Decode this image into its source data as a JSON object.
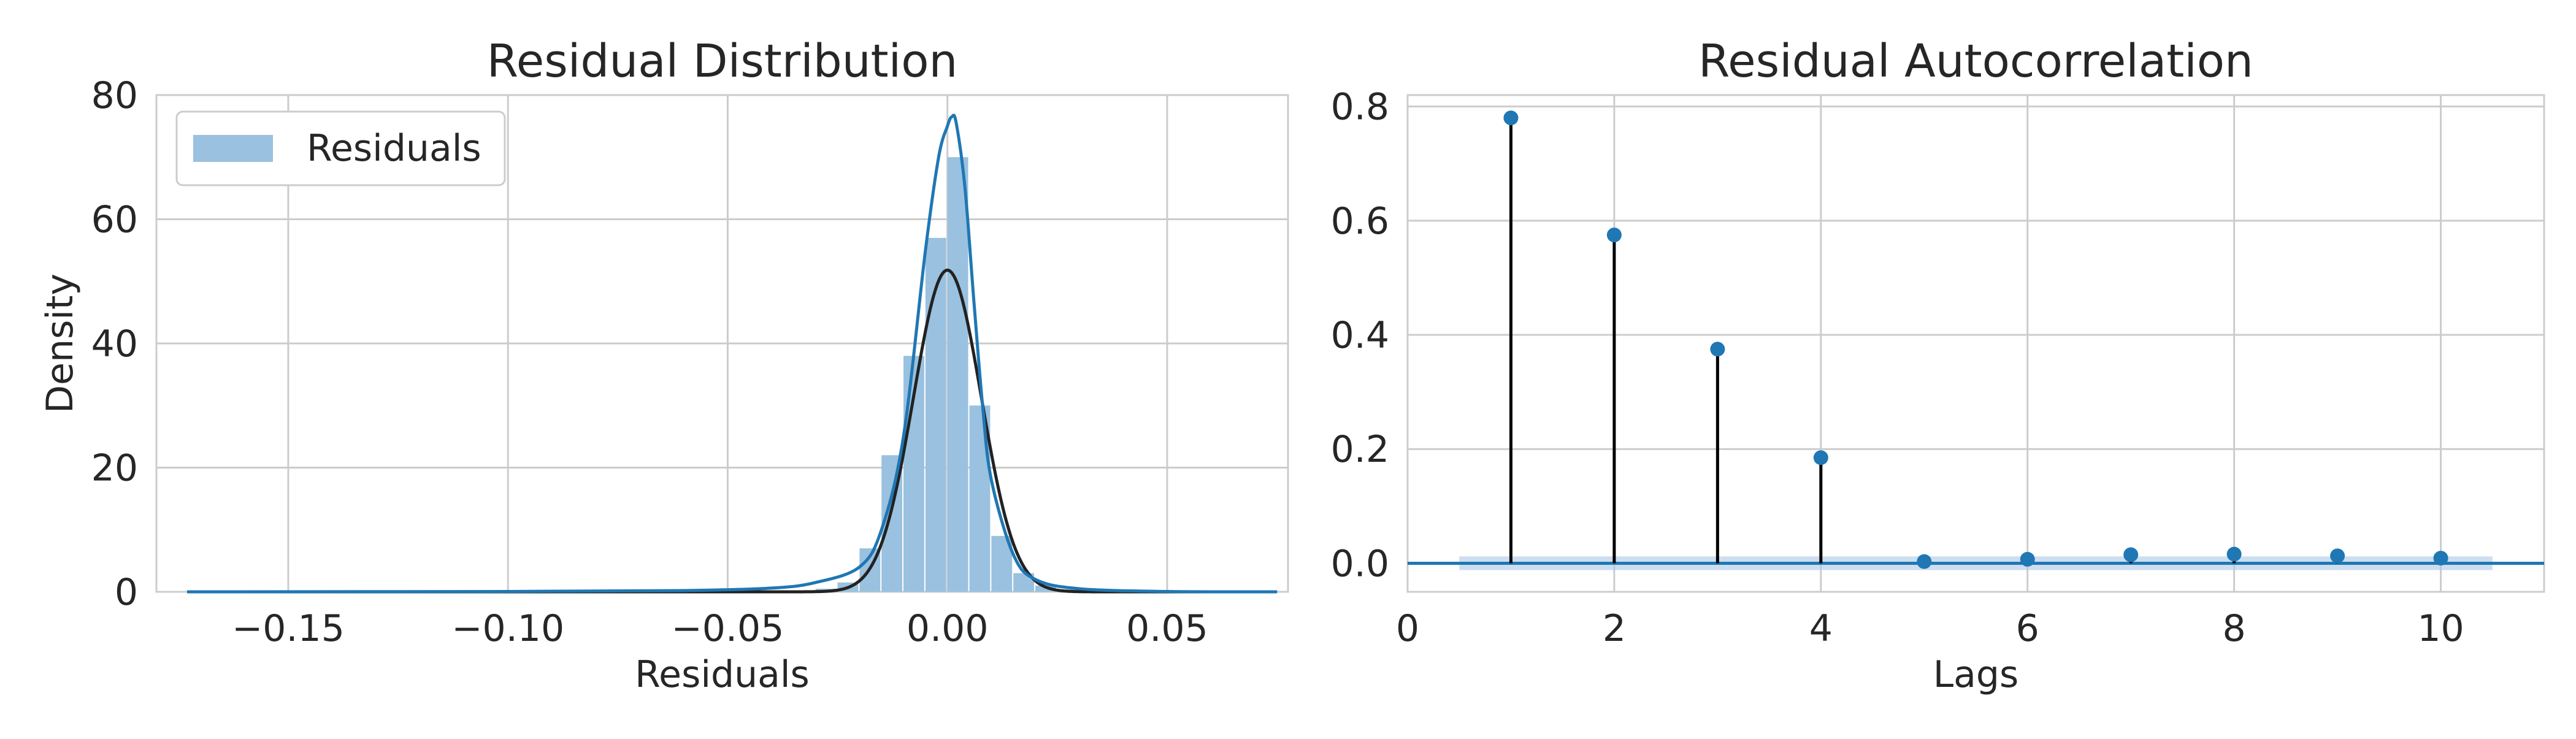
{
  "chart_data": [
    {
      "type": "histogram",
      "title": "Residual Distribution",
      "xlabel": "Residuals",
      "ylabel": "Density",
      "xlim": [
        -0.18,
        0.0775
      ],
      "ylim": [
        0,
        80
      ],
      "xticks": [
        -0.15,
        -0.1,
        -0.05,
        0.0,
        0.05
      ],
      "xtick_labels": [
        "−0.15",
        "−0.10",
        "−0.05",
        "0.00",
        "0.05"
      ],
      "yticks": [
        0,
        20,
        40,
        60,
        80
      ],
      "ytick_labels": [
        "0",
        "20",
        "40",
        "60",
        "80"
      ],
      "grid": true,
      "legend": {
        "position": "top-left",
        "entries": [
          "Residuals"
        ]
      },
      "histogram": {
        "bin_width": 0.005,
        "bins": [
          {
            "x0": -0.03,
            "density": 0.5
          },
          {
            "x0": -0.025,
            "density": 1.5
          },
          {
            "x0": -0.02,
            "density": 7
          },
          {
            "x0": -0.015,
            "density": 22
          },
          {
            "x0": -0.01,
            "density": 38
          },
          {
            "x0": -0.005,
            "density": 57
          },
          {
            "x0": 0.0,
            "density": 70
          },
          {
            "x0": 0.005,
            "density": 30
          },
          {
            "x0": 0.01,
            "density": 9
          },
          {
            "x0": 0.015,
            "density": 3
          },
          {
            "x0": 0.02,
            "density": 1
          },
          {
            "x0": 0.025,
            "density": 0.4
          }
        ]
      },
      "series": [
        {
          "name": "Residuals",
          "kind": "kde",
          "x": [
            -0.173,
            -0.1,
            -0.06,
            -0.04,
            -0.03,
            -0.02,
            -0.015,
            -0.01,
            -0.005,
            -0.002,
            0.0,
            0.001,
            0.002,
            0.004,
            0.006,
            0.008,
            0.01,
            0.015,
            0.02,
            0.03,
            0.05,
            0.075
          ],
          "y": [
            0,
            0.05,
            0.2,
            0.6,
            1.5,
            4,
            10,
            25,
            55,
            70,
            75,
            76.5,
            75.5,
            65,
            47,
            30,
            18,
            6,
            2,
            0.5,
            0.05,
            0
          ]
        },
        {
          "kind": "normal-fit",
          "mean": 0.0,
          "std": 0.0077,
          "x_range": [
            -0.173,
            0.075
          ]
        }
      ],
      "colors": {
        "hist_fill": "#9ac1df",
        "kde": "#1f77b4",
        "fit": "#222222"
      }
    },
    {
      "type": "stem",
      "title": "Residual Autocorrelation",
      "xlabel": "Lags",
      "ylabel": "",
      "xlim": [
        0,
        11
      ],
      "ylim": [
        -0.05,
        0.82
      ],
      "xticks": [
        0,
        2,
        4,
        6,
        8,
        10
      ],
      "xtick_labels": [
        "0",
        "2",
        "4",
        "6",
        "8",
        "10"
      ],
      "yticks": [
        0.0,
        0.2,
        0.4,
        0.6,
        0.8
      ],
      "ytick_labels": [
        "0.0",
        "0.2",
        "0.4",
        "0.6",
        "0.8"
      ],
      "grid": true,
      "lags": [
        1,
        2,
        3,
        4,
        5,
        6,
        7,
        8,
        9,
        10
      ],
      "values": [
        0.78,
        0.575,
        0.375,
        0.185,
        0.003,
        0.007,
        0.015,
        0.016,
        0.013,
        0.009
      ],
      "confidence_band": {
        "x_range": [
          0.5,
          10.5
        ],
        "half_width": 0.012
      },
      "colors": {
        "marker": "#1f77b4",
        "stem": "#000000",
        "baseline": "#1f77b4",
        "band": "#aac8e4"
      }
    }
  ]
}
